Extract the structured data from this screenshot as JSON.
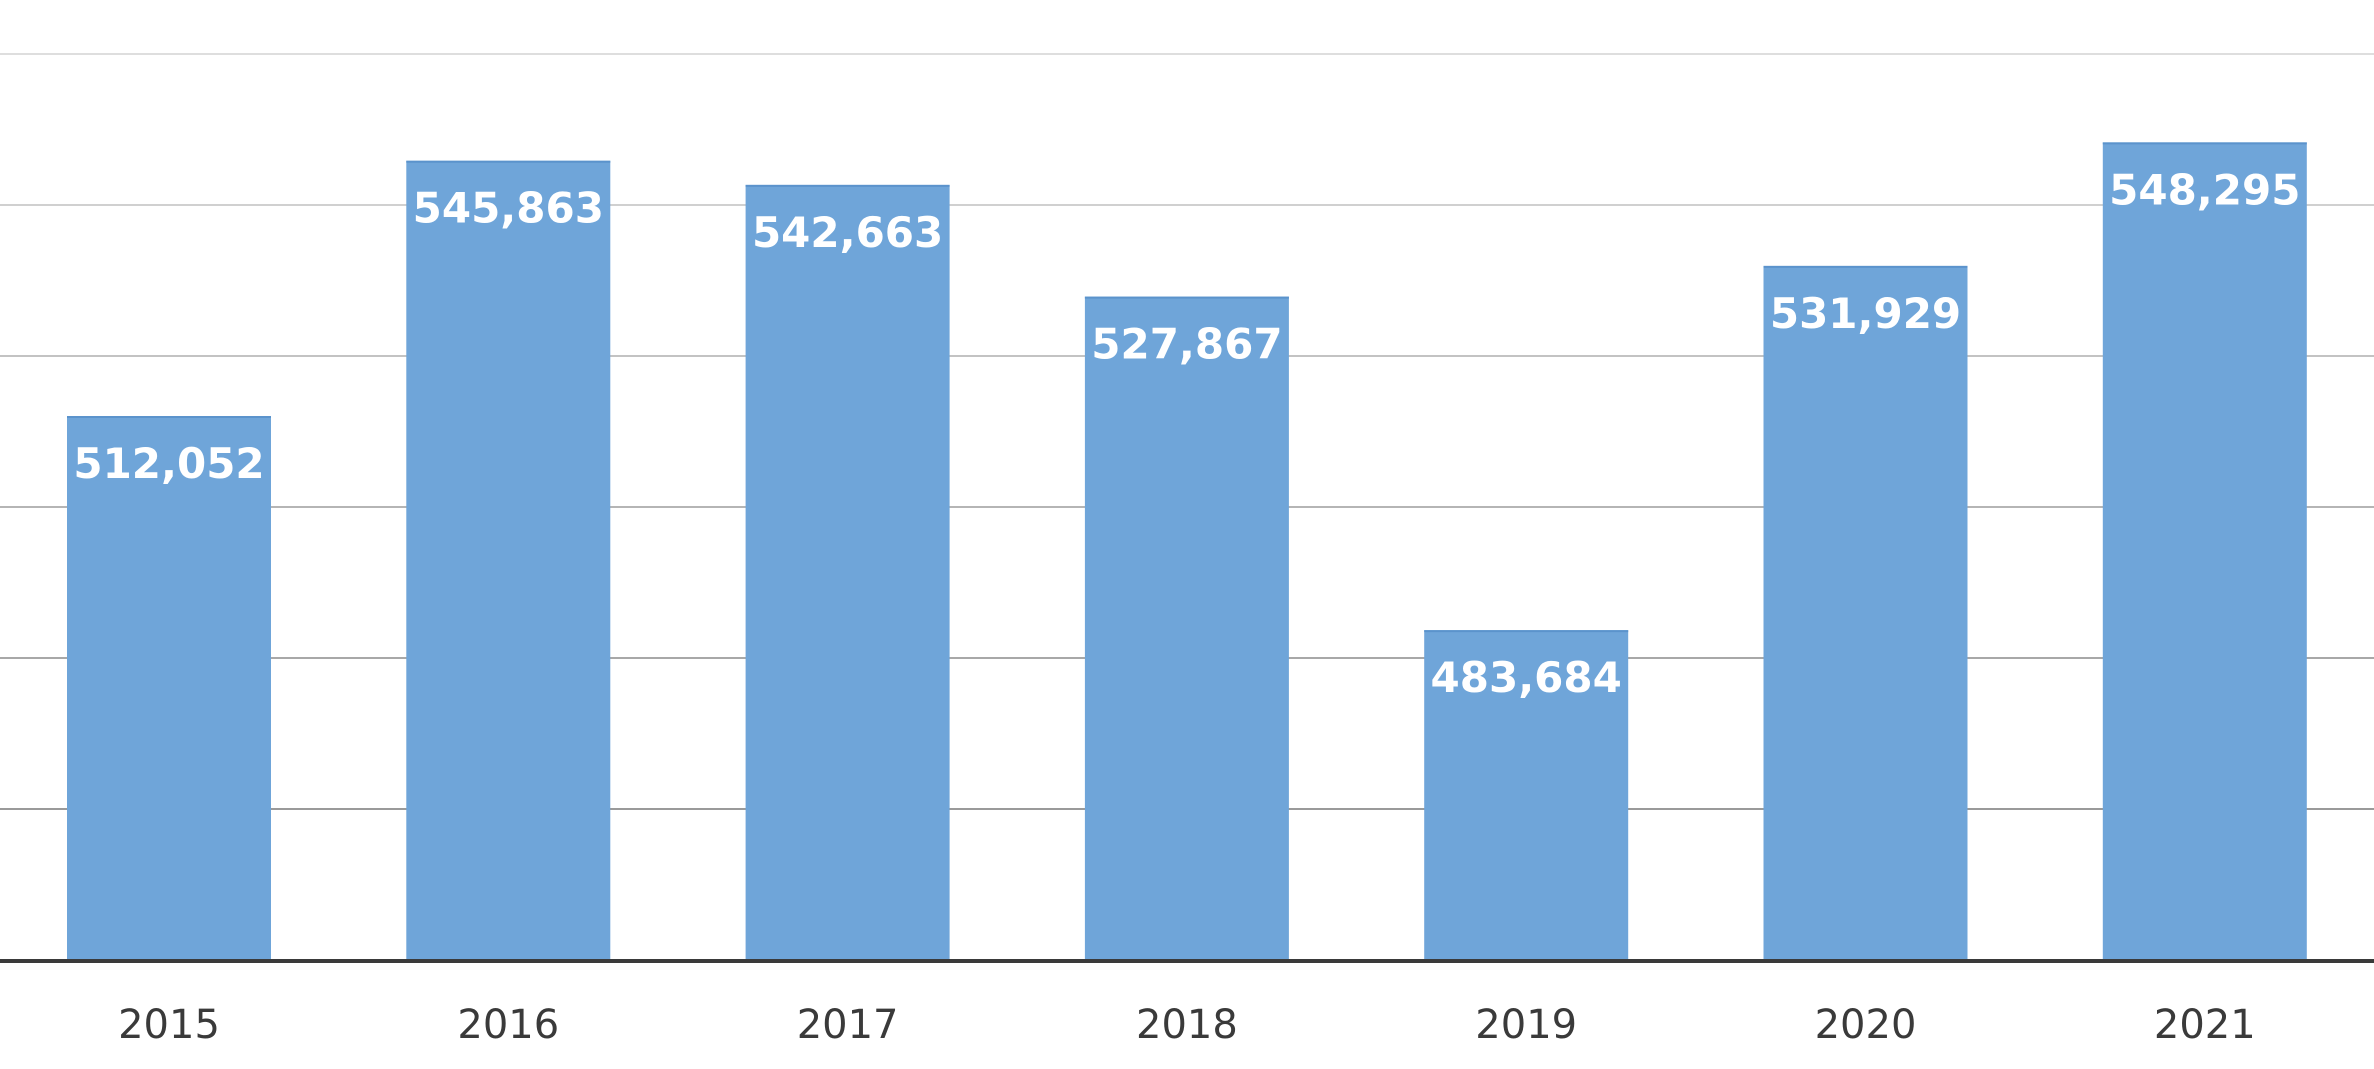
{
  "chart_data": {
    "type": "bar",
    "title": "",
    "xlabel": "",
    "ylabel": "",
    "categories": [
      "2015",
      "2016",
      "2017",
      "2018",
      "2019",
      "2020",
      "2021"
    ],
    "values": [
      512052,
      545863,
      542663,
      527867,
      483684,
      531929,
      548295
    ],
    "value_labels": [
      "512,052",
      "545,863",
      "542,663",
      "527,867",
      "483,684",
      "531,929",
      "548,295"
    ],
    "ylim": [
      440000,
      560000
    ],
    "gridlines": [
      460000,
      480000,
      500000,
      520000,
      540000,
      560000
    ],
    "grid": true,
    "legend": "none",
    "colors": {
      "bar": "#6fa5d9",
      "grid_light": "#dcdcdc",
      "grid_dark": "#9a9a9a",
      "axis": "#3a3a3a",
      "bar_label": "#ffffff",
      "tick_label": "#3a3a3a"
    }
  }
}
